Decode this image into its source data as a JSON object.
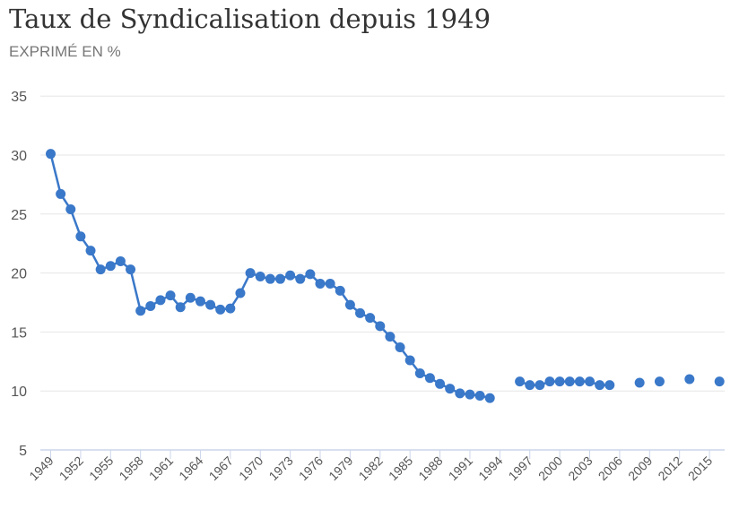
{
  "chart_data": {
    "type": "line",
    "title": "Taux de Syndicalisation depuis 1949",
    "subtitle": "EXPRIMÉ EN %",
    "xlabel": "",
    "ylabel": "",
    "ylim": [
      5,
      35
    ],
    "yticks": [
      5,
      10,
      15,
      20,
      25,
      30,
      35
    ],
    "xlim": [
      1949,
      2016
    ],
    "xticks": [
      1949,
      1952,
      1955,
      1958,
      1961,
      1964,
      1967,
      1970,
      1973,
      1976,
      1979,
      1982,
      1985,
      1988,
      1991,
      1994,
      1997,
      2000,
      2003,
      2006,
      2009,
      2012,
      2015
    ],
    "grid": true,
    "color": "#3a78c9",
    "x": [
      1949,
      1950,
      1951,
      1952,
      1953,
      1954,
      1955,
      1956,
      1957,
      1958,
      1959,
      1960,
      1961,
      1962,
      1963,
      1964,
      1965,
      1966,
      1967,
      1968,
      1969,
      1970,
      1971,
      1972,
      1973,
      1974,
      1975,
      1976,
      1977,
      1978,
      1979,
      1980,
      1981,
      1982,
      1983,
      1984,
      1985,
      1986,
      1987,
      1988,
      1989,
      1990,
      1991,
      1992,
      1993,
      1996,
      1997,
      1998,
      1999,
      2000,
      2001,
      2002,
      2003,
      2004,
      2005,
      2008,
      2010,
      2013,
      2016
    ],
    "y": [
      30.1,
      26.7,
      25.4,
      23.1,
      21.9,
      20.3,
      20.6,
      21.0,
      20.3,
      16.8,
      17.2,
      17.7,
      18.1,
      17.1,
      17.9,
      17.6,
      17.3,
      16.9,
      17.0,
      18.3,
      20.0,
      19.7,
      19.5,
      19.5,
      19.8,
      19.5,
      19.9,
      19.1,
      19.1,
      18.5,
      17.3,
      16.6,
      16.2,
      15.5,
      14.6,
      13.7,
      12.6,
      11.5,
      11.1,
      10.6,
      10.2,
      9.8,
      9.7,
      9.6,
      9.4,
      10.8,
      10.5,
      10.5,
      10.8,
      10.8,
      10.8,
      10.8,
      10.8,
      10.5,
      10.5,
      10.7,
      10.8,
      11.0,
      10.8
    ]
  }
}
